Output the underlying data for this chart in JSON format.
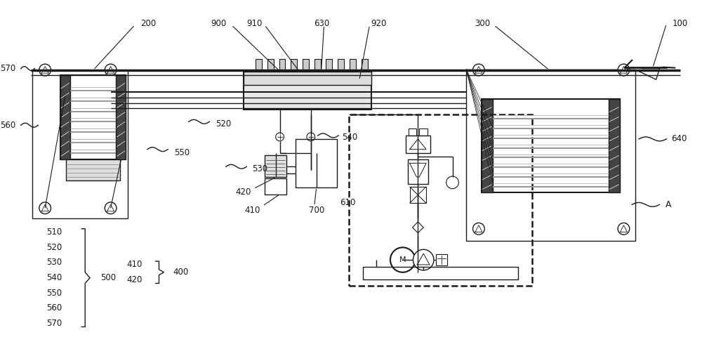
{
  "bg_color": "#ffffff",
  "lc": "#1a1a1a",
  "fig_w": 10.0,
  "fig_h": 5.07,
  "dpi": 100
}
